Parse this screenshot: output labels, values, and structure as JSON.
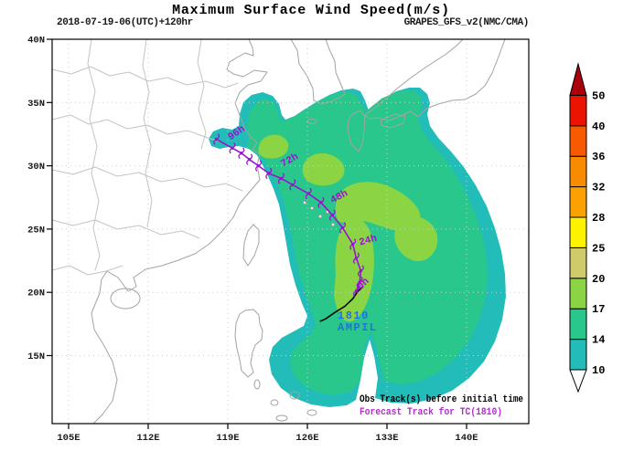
{
  "header": {
    "title": "Maximum Surface Wind Speed(m/s)",
    "subtitle_left": "2018-07-19-06(UTC)+120hr",
    "subtitle_right": "GRAPES_GFS_v2(NMC/CMA)"
  },
  "legend": {
    "obs_label": "Obs Track(s) before initial time",
    "forecast_label": "Forecast Track for TC(1810)"
  },
  "storm": {
    "id": "1810",
    "name": "AMPIL"
  },
  "axes": {
    "lat_labels": [
      "40N",
      "35N",
      "30N",
      "25N",
      "20N",
      "15N"
    ],
    "lon_labels": [
      "105E",
      "112E",
      "119E",
      "126E",
      "133E",
      "140E"
    ]
  },
  "colors": {
    "level_10_14": "#22BCB9",
    "level_14_17": "#29C78B",
    "level_17_20": "#8BD544",
    "forecast_track": "#9913D1",
    "forecast_legend": "#B52ACF",
    "obs_track": "#000000",
    "storm_label": "#2173D6",
    "coastline": "#A3A3A3",
    "province_line": "#C4C4C4",
    "gridline": "#CFCFCF"
  },
  "colorbar": {
    "tick_labels": [
      "50",
      "40",
      "36",
      "32",
      "28",
      "25",
      "20",
      "17",
      "14",
      "10"
    ],
    "segment_colors": [
      "#22BCB9",
      "#29C78B",
      "#8BD544",
      "#CFCB68",
      "#FDF200",
      "#FBA202",
      "#F78C02",
      "#F75A00",
      "#EB1400"
    ],
    "over_color": "#AB000B",
    "under_color": "#FFFFFF"
  },
  "chart_data": {
    "type": "heatmap",
    "subtype": "filled-contour-map-with-tc-track",
    "title": "Maximum Surface Wind Speed(m/s)",
    "model_run": "2018-07-19-06(UTC)+120hr",
    "model": "GRAPES_GFS_v2(NMC/CMA)",
    "map_extent": {
      "lon": [
        103.5,
        145.5
      ],
      "lat": [
        9.6,
        40.0
      ]
    },
    "grid": {
      "lat_ticks_deg": [
        40,
        35,
        30,
        25,
        20,
        15
      ],
      "lon_ticks_deg": [
        105,
        112,
        119,
        126,
        133,
        140
      ],
      "style": "dotted"
    },
    "wind_speed_levels_mps": [
      10,
      14,
      17,
      20,
      25,
      28,
      32,
      36,
      40,
      50
    ],
    "filled_levels_visible_mps": [
      "10-14",
      "14-17",
      "17-20"
    ],
    "colorbar_orientation": "vertical-right",
    "hour_labels": [
      "0h",
      "24h",
      "48h",
      "72h",
      "96h"
    ],
    "forecast_track": {
      "tc_id": "1810",
      "tc_name": "AMPIL",
      "points": [
        {
          "hour": 0,
          "lon": 130.3,
          "lat": 20.1
        },
        {
          "hour": 6,
          "lon": 130.6,
          "lat": 20.8
        },
        {
          "hour": 12,
          "lon": 130.7,
          "lat": 21.7
        },
        {
          "hour": 18,
          "lon": 130.3,
          "lat": 22.7
        },
        {
          "hour": 24,
          "lon": 130.0,
          "lat": 23.8
        },
        {
          "hour": 30,
          "lon": 129.1,
          "lat": 25.1
        },
        {
          "hour": 36,
          "lon": 128.2,
          "lat": 26.1
        },
        {
          "hour": 42,
          "lon": 127.2,
          "lat": 27.1
        },
        {
          "hour": 48,
          "lon": 126.1,
          "lat": 27.8
        },
        {
          "hour": 54,
          "lon": 124.7,
          "lat": 28.5
        },
        {
          "hour": 60,
          "lon": 123.7,
          "lat": 29.0
        },
        {
          "hour": 66,
          "lon": 122.6,
          "lat": 29.4
        },
        {
          "hour": 72,
          "lon": 121.7,
          "lat": 30.0
        },
        {
          "hour": 78,
          "lon": 120.9,
          "lat": 30.5
        },
        {
          "hour": 84,
          "lon": 120.2,
          "lat": 31.0
        },
        {
          "hour": 90,
          "lon": 119.4,
          "lat": 31.4
        },
        {
          "hour": 96,
          "lon": 118.0,
          "lat": 32.1
        }
      ]
    },
    "obs_track": {
      "points": [
        {
          "lon": 127.1,
          "lat": 17.7
        },
        {
          "lon": 127.6,
          "lat": 17.9
        },
        {
          "lon": 128.4,
          "lat": 18.4
        },
        {
          "lon": 129.3,
          "lat": 18.9
        },
        {
          "lon": 130.0,
          "lat": 19.5
        },
        {
          "lon": 130.4,
          "lat": 20.05
        },
        {
          "lon": 130.9,
          "lat": 20.45
        }
      ]
    }
  }
}
